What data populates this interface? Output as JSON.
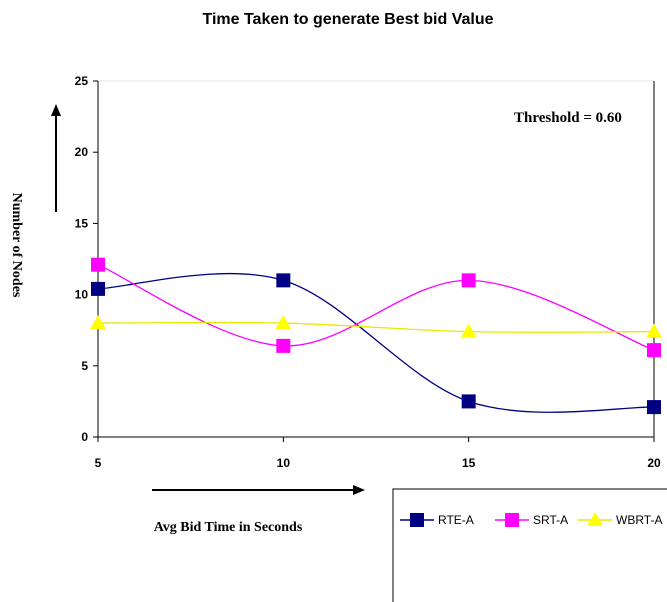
{
  "chart_data": {
    "type": "line",
    "title": "Time Taken to generate Best bid Value",
    "xlabel": "Avg Bid Time in Seconds",
    "ylabel": "Number of Nodes",
    "annotation": "Threshold = 0.60",
    "x": [
      5,
      10,
      15,
      20
    ],
    "x_tick_labels": [
      "5",
      "10",
      "15",
      "20"
    ],
    "ylim": [
      0,
      25
    ],
    "y_ticks": [
      0,
      5,
      10,
      15,
      20,
      25
    ],
    "y_tick_labels": [
      "0",
      "5",
      "10",
      "15",
      "20",
      "25"
    ],
    "grid": false,
    "legend_position": "bottom-right",
    "series": [
      {
        "name": "RTE-A",
        "values": [
          10.4,
          11.0,
          2.5,
          2.1
        ],
        "color": "#000080",
        "marker": "square"
      },
      {
        "name": "SRT-A",
        "values": [
          12.1,
          6.4,
          11.0,
          6.1
        ],
        "color": "#ff00ff",
        "marker": "square"
      },
      {
        "name": "WBRT-A",
        "values": [
          8.0,
          8.0,
          7.4,
          7.4
        ],
        "color": "#ffff00",
        "marker": "triangle"
      }
    ]
  }
}
